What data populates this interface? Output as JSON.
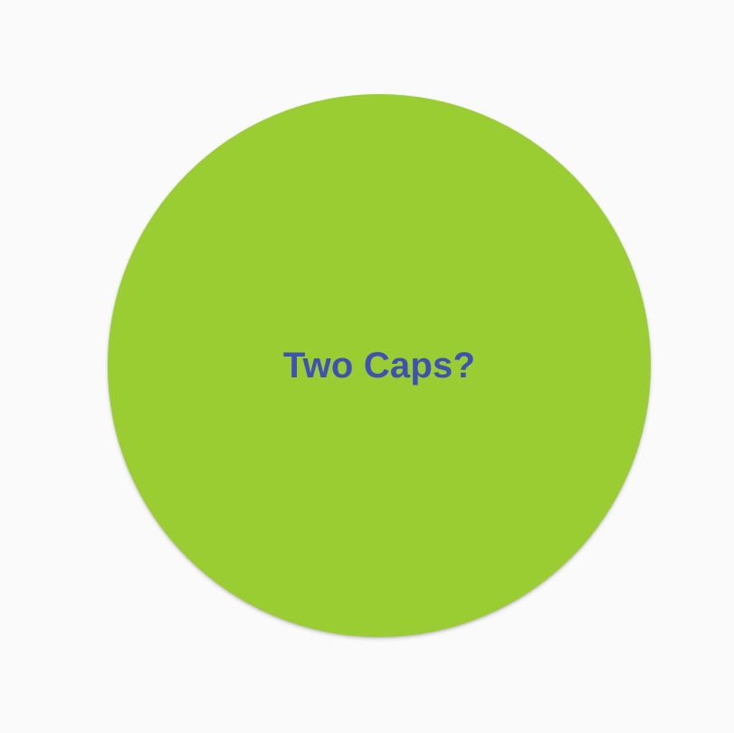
{
  "main": {
    "circle_button": {
      "label": "Two Caps?",
      "fill_color": "#9acd32",
      "text_color": "#3f51b5"
    }
  },
  "colors": {
    "background": "#fafafa"
  }
}
